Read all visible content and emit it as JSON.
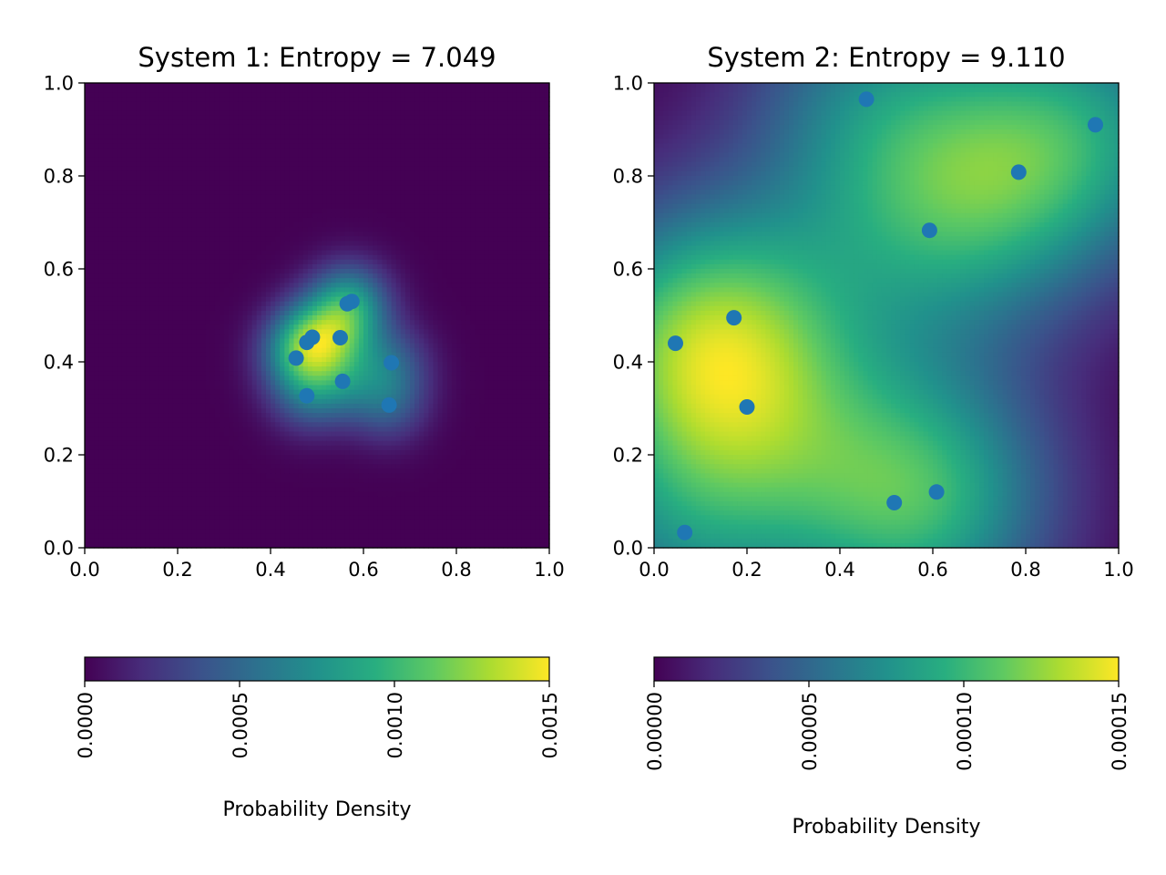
{
  "chart_data": [
    {
      "type": "heatmap",
      "title": "System 1: Entropy = 7.049",
      "xlim": [
        0.0,
        1.0
      ],
      "ylim": [
        0.0,
        1.0
      ],
      "xticks": [
        "0.0",
        "0.2",
        "0.4",
        "0.6",
        "0.8",
        "1.0"
      ],
      "yticks": [
        "0.0",
        "0.2",
        "0.4",
        "0.6",
        "0.8",
        "1.0"
      ],
      "grid": false,
      "colormap": "viridis",
      "kde_bandwidth": 0.06,
      "points": [
        {
          "x": 0.575,
          "y": 0.53
        },
        {
          "x": 0.565,
          "y": 0.525
        },
        {
          "x": 0.49,
          "y": 0.453
        },
        {
          "x": 0.478,
          "y": 0.442
        },
        {
          "x": 0.55,
          "y": 0.452
        },
        {
          "x": 0.455,
          "y": 0.408
        },
        {
          "x": 0.66,
          "y": 0.398
        },
        {
          "x": 0.555,
          "y": 0.358
        },
        {
          "x": 0.478,
          "y": 0.327
        },
        {
          "x": 0.655,
          "y": 0.307
        }
      ],
      "point_color": "#1f77b4",
      "colorbar": {
        "label": "Probability Density",
        "min": 0.0,
        "max": 0.0015,
        "ticks": [
          {
            "value": 0.0,
            "label": "0.0000"
          },
          {
            "value": 0.0005,
            "label": "0.0005"
          },
          {
            "value": 0.001,
            "label": "0.0010"
          },
          {
            "value": 0.0015,
            "label": "0.0015"
          }
        ]
      }
    },
    {
      "type": "heatmap",
      "title": "System 2: Entropy = 9.110",
      "xlim": [
        0.0,
        1.0
      ],
      "ylim": [
        0.0,
        1.0
      ],
      "xticks": [
        "0.0",
        "0.2",
        "0.4",
        "0.6",
        "0.8",
        "1.0"
      ],
      "yticks": [
        "0.0",
        "0.2",
        "0.4",
        "0.6",
        "0.8",
        "1.0"
      ],
      "grid": false,
      "colormap": "viridis",
      "kde_bandwidth": 0.2,
      "points": [
        {
          "x": 0.457,
          "y": 0.965
        },
        {
          "x": 0.95,
          "y": 0.91
        },
        {
          "x": 0.785,
          "y": 0.808
        },
        {
          "x": 0.593,
          "y": 0.683
        },
        {
          "x": 0.172,
          "y": 0.495
        },
        {
          "x": 0.046,
          "y": 0.44
        },
        {
          "x": 0.2,
          "y": 0.303
        },
        {
          "x": 0.517,
          "y": 0.097
        },
        {
          "x": 0.608,
          "y": 0.12
        },
        {
          "x": 0.066,
          "y": 0.033
        }
      ],
      "point_color": "#1f77b4",
      "colorbar": {
        "label": "Probability Density",
        "min": 0.0,
        "max": 0.00015,
        "ticks": [
          {
            "value": 0.0,
            "label": "0.00000"
          },
          {
            "value": 5e-05,
            "label": "0.00005"
          },
          {
            "value": 0.0001,
            "label": "0.00010"
          },
          {
            "value": 0.00015,
            "label": "0.00015"
          }
        ]
      }
    }
  ]
}
